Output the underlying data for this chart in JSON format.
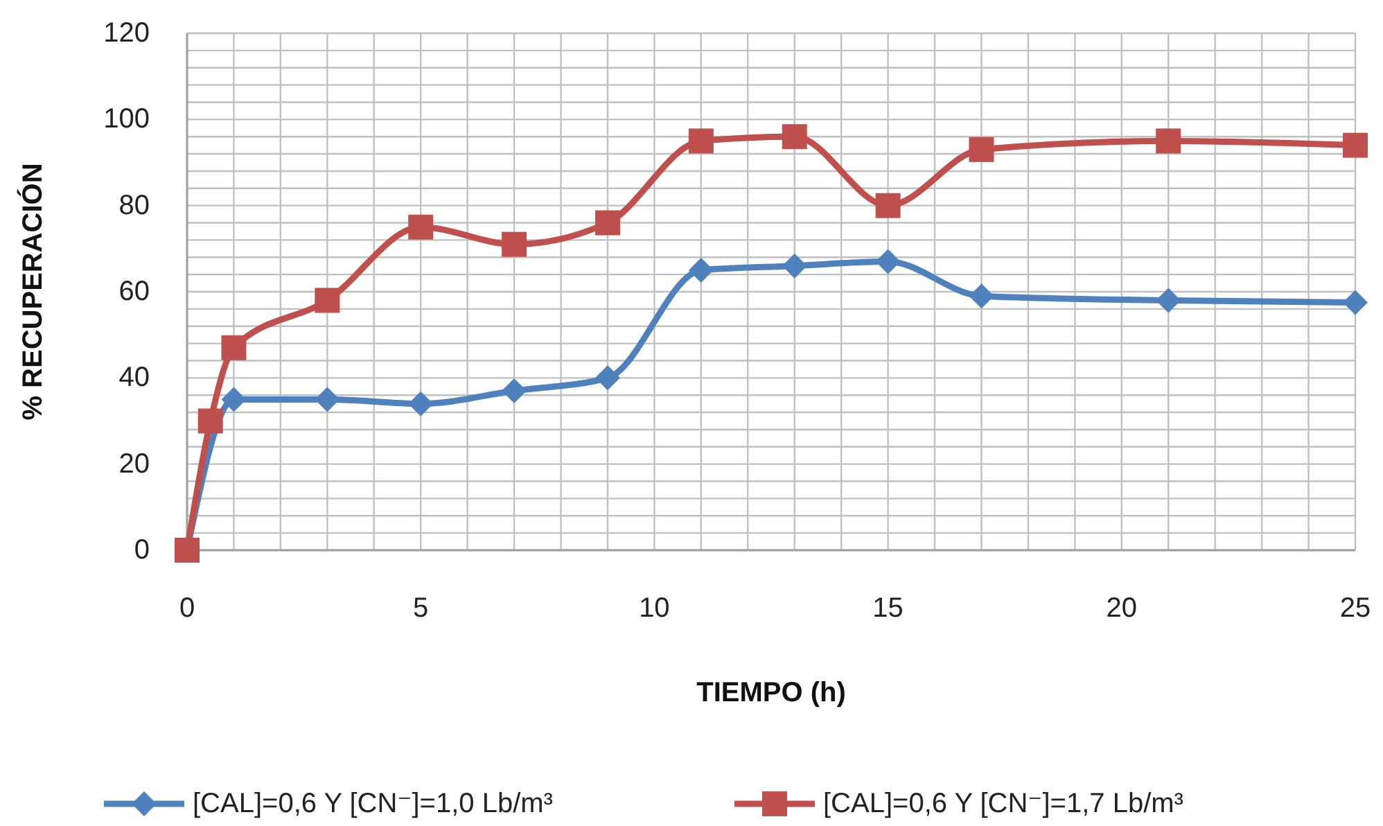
{
  "chart_data": {
    "type": "line",
    "xlabel": "TIEMPO (h)",
    "ylabel": "% RECUPERACIÓN",
    "xlim": [
      0,
      25
    ],
    "xticks": [
      0,
      {
        "value": 1,
        "label": null
      },
      {
        "value": 2,
        "label": null
      },
      {
        "value": 3,
        "label": null
      },
      {
        "value": 4,
        "label": null
      },
      5,
      {
        "value": 6,
        "label": null
      },
      {
        "value": 7,
        "label": null
      },
      {
        "value": 8,
        "label": null
      },
      {
        "value": 9,
        "label": null
      },
      10,
      {
        "value": 11,
        "label": null
      },
      {
        "value": 12,
        "label": null
      },
      {
        "value": 13,
        "label": null
      },
      {
        "value": 14,
        "label": null
      },
      15,
      {
        "value": 16,
        "label": null
      },
      {
        "value": 17,
        "label": null
      },
      {
        "value": 18,
        "label": null
      },
      {
        "value": 19,
        "label": null
      },
      20,
      {
        "value": 21,
        "label": null
      },
      {
        "value": 22,
        "label": null
      },
      {
        "value": 23,
        "label": null
      },
      {
        "value": 24,
        "label": null
      },
      25
    ],
    "ylim": [
      0,
      120
    ],
    "yticks": [
      0,
      {
        "value": 4,
        "label": null
      },
      {
        "value": 8,
        "label": null
      },
      {
        "value": 12,
        "label": null
      },
      {
        "value": 16,
        "label": null
      },
      20,
      {
        "value": 24,
        "label": null
      },
      {
        "value": 28,
        "label": null
      },
      {
        "value": 32,
        "label": null
      },
      {
        "value": 36,
        "label": null
      },
      40,
      {
        "value": 44,
        "label": null
      },
      {
        "value": 48,
        "label": null
      },
      {
        "value": 52,
        "label": null
      },
      {
        "value": 56,
        "label": null
      },
      60,
      {
        "value": 64,
        "label": null
      },
      {
        "value": 68,
        "label": null
      },
      {
        "value": 72,
        "label": null
      },
      {
        "value": 76,
        "label": null
      },
      80,
      {
        "value": 84,
        "label": null
      },
      {
        "value": 88,
        "label": null
      },
      {
        "value": 92,
        "label": null
      },
      {
        "value": 96,
        "label": null
      },
      100,
      {
        "value": 104,
        "label": null
      },
      {
        "value": 108,
        "label": null
      },
      {
        "value": 112,
        "label": null
      },
      {
        "value": 116,
        "label": null
      },
      120
    ],
    "grid": true,
    "legend": "bottom",
    "line_style": "solid",
    "x": [
      0,
      0.5,
      1,
      3,
      5,
      7,
      9,
      11,
      13,
      15,
      17,
      21,
      25
    ],
    "series": [
      {
        "name": "[CAL]=0,6 Y [CN⁻]=1,0 Lb/m³",
        "color": "#4f81bd",
        "marker": "diamond",
        "values": [
          0,
          null,
          35,
          35,
          34,
          37,
          40,
          65,
          66,
          67,
          59,
          58,
          57.5
        ]
      },
      {
        "name": "[CAL]=0,6 Y [CN⁻]=1,7 Lb/m³",
        "color": "#c0504d",
        "marker": "square",
        "values": [
          0,
          30,
          47,
          58,
          75,
          71,
          76,
          95,
          96,
          80,
          93,
          95,
          94
        ]
      }
    ]
  }
}
